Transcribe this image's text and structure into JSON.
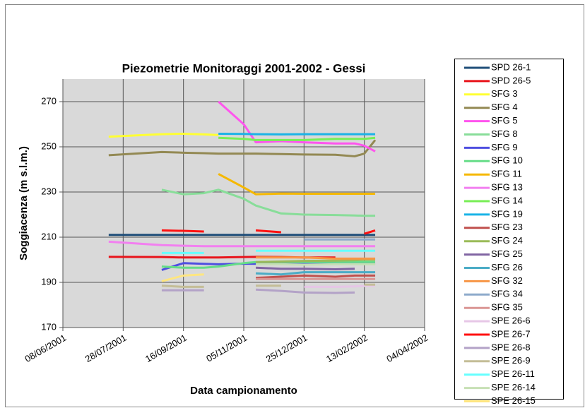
{
  "chart_data": {
    "type": "line",
    "title": "Piezometrie Monitoraggi 2001-2002 - Gessi",
    "x_label": "Data campionamento",
    "y_label": "Soggiacenza (m s.l.m.)",
    "x": [
      "16/07/2001",
      "29/08/2001",
      "16/09/2001",
      "03/10/2001",
      "15/10/2001",
      "05/11/2001",
      "15/11/2001",
      "06/12/2001",
      "25/12/2001",
      "20/01/2002",
      "05/02/2002",
      "13/02/2002",
      "22/02/2002"
    ],
    "xlim": [
      "08/06/2001",
      "04/04/2002"
    ],
    "xticks": [
      "08/06/2001",
      "28/07/2001",
      "16/09/2001",
      "05/11/2001",
      "25/12/2001",
      "13/02/2002",
      "04/04/2002"
    ],
    "ylim": [
      170,
      280
    ],
    "yticks": [
      170,
      190,
      210,
      230,
      250,
      270
    ],
    "grid": true,
    "legend": "right",
    "series": [
      {
        "name": "SPD 26-1",
        "color": "#1f4e79",
        "values": [
          211,
          211,
          211,
          211,
          211,
          211,
          211,
          211,
          211,
          211,
          211,
          211,
          211
        ]
      },
      {
        "name": "SPD 26-5",
        "color": "#e8141b",
        "values": [
          201.3,
          201.2,
          201,
          201,
          201,
          201.2,
          201.3,
          201.2,
          201,
          201,
          null,
          null,
          null
        ]
      },
      {
        "name": "SFG 3",
        "color": "#ffff33",
        "values": [
          254.5,
          255.6,
          255.8,
          255.5,
          255.2,
          null,
          null,
          null,
          null,
          null,
          null,
          null,
          null
        ]
      },
      {
        "name": "SFG 4",
        "color": "#938953",
        "values": [
          246.3,
          247.7,
          247.4,
          247.2,
          247,
          247,
          247,
          246.8,
          246.6,
          246.5,
          245.8,
          247,
          253
        ]
      },
      {
        "name": "SFG 5",
        "color": "#ff55ee",
        "values": [
          null,
          null,
          null,
          null,
          270,
          260,
          252,
          252.5,
          252,
          251.5,
          251.5,
          250.5,
          248
        ]
      },
      {
        "name": "SFG 8",
        "color": "#88dd99",
        "values": [
          null,
          231,
          229,
          229.5,
          231,
          227,
          224,
          220.5,
          220,
          219.8,
          219.6,
          219.5,
          219.5
        ]
      },
      {
        "name": "SFG 9",
        "color": "#4f4fe0",
        "values": [
          null,
          195.5,
          198.5,
          198.2,
          198,
          198.3,
          198.2,
          198.2,
          198.2,
          198.2,
          198.2,
          198.2,
          198.2
        ]
      },
      {
        "name": "SFG 10",
        "color": "#66dd88",
        "values": [
          null,
          197,
          196.5,
          196.5,
          197,
          198.5,
          199,
          199,
          199,
          199,
          199,
          199,
          199
        ]
      },
      {
        "name": "SFG 11",
        "color": "#f5b800",
        "values": [
          null,
          null,
          null,
          null,
          238,
          232,
          229,
          229.3,
          229.2,
          229.2,
          229.2,
          229.2,
          229.2
        ]
      },
      {
        "name": "SFG 13",
        "color": "#f27ff0",
        "values": [
          208,
          206.5,
          206.2,
          206,
          206,
          206,
          206,
          206,
          206,
          206,
          206,
          206,
          206
        ]
      },
      {
        "name": "SFG 14",
        "color": "#77ee55",
        "values": [
          null,
          null,
          null,
          null,
          254,
          253.5,
          253,
          253,
          253,
          253.5,
          253.5,
          253.5,
          254
        ]
      },
      {
        "name": "SFG 19",
        "color": "#1ab3e6",
        "values": [
          null,
          null,
          null,
          null,
          255.8,
          255.7,
          255.6,
          255.5,
          255.6,
          255.6,
          255.6,
          255.6,
          255.6
        ]
      },
      {
        "name": "SFG 23",
        "color": "#c0504d",
        "values": [
          null,
          null,
          null,
          null,
          null,
          null,
          192,
          192.5,
          193,
          192.5,
          193,
          193,
          193
        ]
      },
      {
        "name": "SFG 24",
        "color": "#9bbb59",
        "values": [
          null,
          null,
          null,
          null,
          null,
          null,
          199,
          199.2,
          199.5,
          199.6,
          199.8,
          200,
          200
        ]
      },
      {
        "name": "SFG 25",
        "color": "#8064a2",
        "values": [
          null,
          null,
          null,
          null,
          null,
          null,
          196.5,
          196,
          196,
          195.8,
          196,
          null,
          null
        ]
      },
      {
        "name": "SFG 26",
        "color": "#4bacc6",
        "values": [
          null,
          null,
          null,
          null,
          null,
          null,
          194,
          193.5,
          194.5,
          194.5,
          194.5,
          194.5,
          194.5
        ]
      },
      {
        "name": "SFG 32",
        "color": "#f79646",
        "values": [
          null,
          null,
          null,
          null,
          null,
          null,
          201,
          201,
          201,
          200.5,
          200.5,
          200.5,
          200.5
        ]
      },
      {
        "name": "SFG 34",
        "color": "#8eaacb",
        "values": [
          null,
          null,
          null,
          null,
          null,
          null,
          null,
          null,
          209,
          209,
          209,
          209,
          209
        ]
      },
      {
        "name": "SFG 35",
        "color": "#da9694",
        "values": [
          null,
          null,
          null,
          null,
          null,
          null,
          191.5,
          191.5,
          191.5,
          191.5,
          191.5,
          191.5,
          191.5
        ]
      },
      {
        "name": "SPE 26-6",
        "color": "#e6c6e6",
        "values": [
          null,
          null,
          null,
          null,
          null,
          null,
          null,
          null,
          188,
          188,
          188.2,
          188.4,
          188.5
        ]
      },
      {
        "name": "SPE 26-7",
        "color": "#ff1010",
        "values": [
          null,
          213,
          212.8,
          212.5,
          null,
          null,
          213,
          212.2,
          null,
          null,
          null,
          211.5,
          213
        ]
      },
      {
        "name": "SPE 26-8",
        "color": "#b3a2c7",
        "values": [
          null,
          186.5,
          186.5,
          186.5,
          null,
          null,
          186.8,
          186.2,
          185.5,
          185.3,
          185.5,
          null,
          null
        ]
      },
      {
        "name": "SPE 26-9",
        "color": "#c4bd97",
        "values": [
          null,
          188.5,
          188,
          188,
          null,
          null,
          188.5,
          188.5,
          null,
          null,
          null,
          189,
          189
        ]
      },
      {
        "name": "SPE 26-11",
        "color": "#66ffff",
        "values": [
          null,
          203,
          203,
          203,
          null,
          null,
          204,
          204,
          204,
          204,
          204,
          204,
          204
        ]
      },
      {
        "name": "SPE 26-14",
        "color": "#c6e0b4",
        "values": [
          null,
          null,
          null,
          null,
          null,
          null,
          198,
          198,
          197.8,
          198,
          198,
          198,
          198
        ]
      },
      {
        "name": "SPE 26-15",
        "color": "#ffe680",
        "values": [
          null,
          190.5,
          193,
          193.5,
          null,
          null,
          null,
          null,
          null,
          null,
          null,
          null,
          null
        ]
      }
    ]
  }
}
